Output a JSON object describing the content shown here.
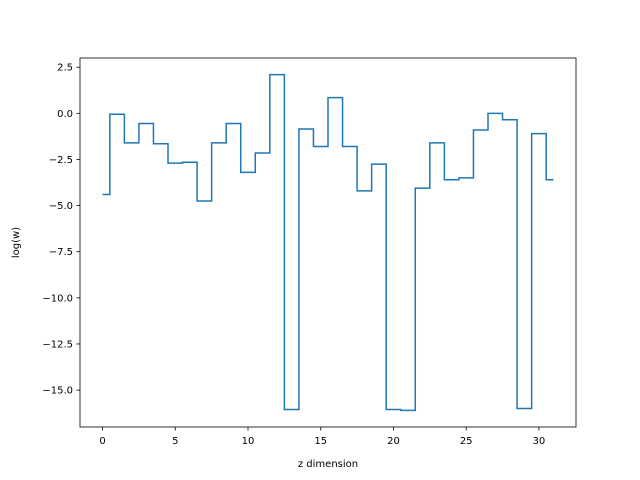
{
  "chart_data": {
    "type": "line",
    "drawstyle": "steps-mid",
    "title": "",
    "xlabel": "z dimension",
    "ylabel": "log(w)",
    "xlim": [
      -1.55,
      32.55
    ],
    "ylim": [
      -17.0,
      3.0
    ],
    "xticks": [
      0,
      5,
      10,
      15,
      20,
      25,
      30
    ],
    "xtick_labels": [
      "0",
      "5",
      "10",
      "15",
      "20",
      "25",
      "30"
    ],
    "yticks": [
      2.5,
      0.0,
      -2.5,
      -5.0,
      -7.5,
      -10.0,
      -12.5,
      -15.0
    ],
    "ytick_labels": [
      "2.5",
      "0.0",
      "−2.5",
      "−5.0",
      "−7.5",
      "−10.0",
      "−12.5",
      "−15.0"
    ],
    "grid": false,
    "legend": false,
    "series": [
      {
        "color": "#1f77b4",
        "x": [
          0,
          1,
          2,
          3,
          4,
          5,
          6,
          7,
          8,
          9,
          10,
          11,
          12,
          13,
          14,
          15,
          16,
          17,
          18,
          19,
          20,
          21,
          22,
          23,
          24,
          25,
          26,
          27,
          28,
          29,
          30,
          31
        ],
        "y": [
          -4.4,
          -0.05,
          -1.6,
          -0.55,
          -1.65,
          -2.7,
          -2.65,
          -4.75,
          -1.6,
          -0.55,
          -3.2,
          -2.15,
          2.1,
          -16.05,
          -0.85,
          -1.8,
          0.85,
          -1.8,
          -4.2,
          -2.75,
          -16.05,
          -16.1,
          -4.05,
          -1.6,
          -3.6,
          -3.5,
          -0.9,
          0.0,
          -0.35,
          -16.0,
          -1.1,
          -3.6
        ]
      }
    ]
  }
}
